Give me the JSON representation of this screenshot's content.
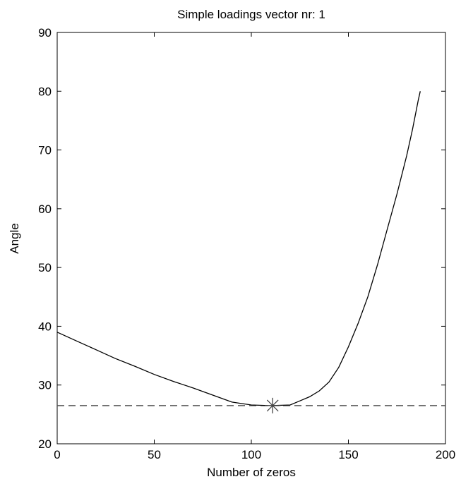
{
  "chart_data": {
    "type": "line",
    "title": "Simple loadings vector nr: 1",
    "xlabel": "Number of zeros",
    "ylabel": "Angle",
    "xlim": [
      0,
      200
    ],
    "ylim": [
      20,
      90
    ],
    "xticks": [
      0,
      50,
      100,
      150,
      200
    ],
    "yticks": [
      20,
      30,
      40,
      50,
      60,
      70,
      80,
      90
    ],
    "grid": false,
    "series": [
      {
        "style": "solid",
        "color": "#000000",
        "x": [
          0,
          10,
          20,
          30,
          40,
          50,
          60,
          70,
          80,
          90,
          100,
          110,
          120,
          125,
          130,
          135,
          140,
          145,
          150,
          155,
          160,
          165,
          170,
          175,
          180,
          183,
          186,
          187
        ],
        "y": [
          39.0,
          37.5,
          36.0,
          34.5,
          33.2,
          31.8,
          30.6,
          29.5,
          28.3,
          27.1,
          26.6,
          26.5,
          26.6,
          27.3,
          28.0,
          29.0,
          30.5,
          33.0,
          36.5,
          40.5,
          45.0,
          50.5,
          56.5,
          62.5,
          69.0,
          73.5,
          78.5,
          80.0
        ]
      }
    ],
    "reference_line": {
      "y": 26.5,
      "style": "dashed",
      "color": "#555555"
    },
    "marker": {
      "x": 111,
      "y": 26.5,
      "symbol": "asterisk",
      "color": "#444444"
    }
  }
}
